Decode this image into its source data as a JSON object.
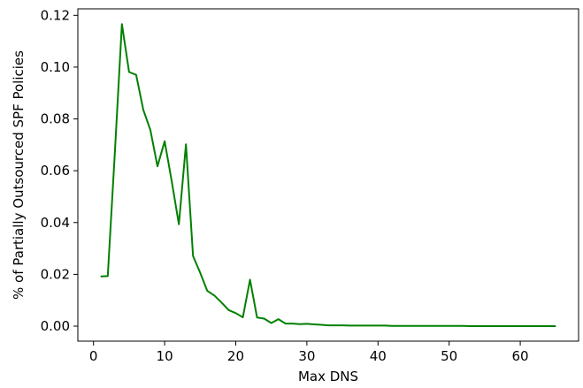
{
  "chart_data": {
    "type": "line",
    "title": "",
    "xlabel": "Max DNS",
    "ylabel": "% of Partially Outsourced SPF Policies",
    "xlim": [
      -2.2,
      68.2
    ],
    "ylim": [
      -0.0058,
      0.1225
    ],
    "x_ticks": [
      0,
      10,
      20,
      30,
      40,
      50,
      60
    ],
    "x_tick_labels": [
      "0",
      "10",
      "20",
      "30",
      "40",
      "50",
      "60"
    ],
    "y_ticks": [
      0.0,
      0.02,
      0.04,
      0.06,
      0.08,
      0.1,
      0.12
    ],
    "y_tick_labels": [
      "0.00",
      "0.02",
      "0.04",
      "0.06",
      "0.08",
      "0.10",
      "0.12"
    ],
    "grid": false,
    "legend": "none",
    "series": [
      {
        "color": "#008000",
        "x": [
          1,
          2,
          3,
          4,
          5,
          6,
          7,
          8,
          9,
          10,
          11,
          12,
          13,
          14,
          15,
          16,
          17,
          18,
          19,
          20,
          21,
          22,
          23,
          24,
          25,
          26,
          27,
          28,
          29,
          30,
          31,
          32,
          33,
          34,
          35,
          36,
          37,
          38,
          39,
          40,
          41,
          42,
          43,
          44,
          45,
          46,
          47,
          48,
          49,
          50,
          51,
          52,
          53,
          54,
          55,
          56,
          57,
          58,
          59,
          60,
          61,
          62,
          63,
          64,
          65
        ],
        "y": [
          0.0192,
          0.0193,
          0.0668,
          0.1166,
          0.0981,
          0.097,
          0.0835,
          0.0757,
          0.0617,
          0.0714,
          0.056,
          0.0393,
          0.0702,
          0.0271,
          0.0206,
          0.0136,
          0.0118,
          0.0091,
          0.0062,
          0.005,
          0.0034,
          0.0179,
          0.0033,
          0.0029,
          0.0012,
          0.0027,
          0.001,
          0.001,
          0.0008,
          0.0009,
          0.0007,
          0.0005,
          0.0003,
          0.0003,
          0.0003,
          0.0002,
          0.0002,
          0.0002,
          0.0002,
          0.0002,
          0.0002,
          0.0001,
          0.0001,
          0.0001,
          0.0001,
          0.0001,
          0.0001,
          0.0001,
          0.0001,
          0.0001,
          0.0001,
          0.0001,
          0.0,
          0.0,
          0.0,
          0.0,
          0.0,
          0.0,
          0.0,
          0.0,
          0.0,
          0.0,
          0.0,
          0.0,
          0.0
        ]
      }
    ]
  }
}
